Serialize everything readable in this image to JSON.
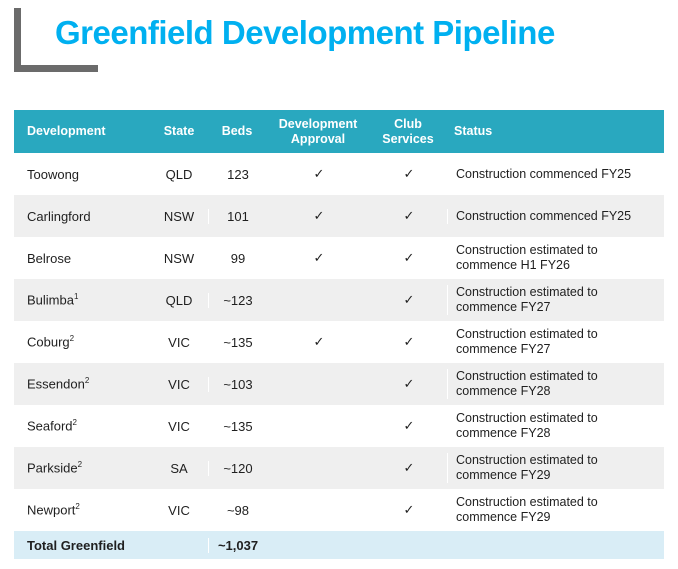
{
  "title": "Greenfield Development Pipeline",
  "colors": {
    "title_accent": "#00b0f0",
    "header_background": "#29a8bf",
    "header_text": "#ffffff",
    "alt_row_background": "#efefef",
    "total_row_background": "#d9edf6",
    "corner_mark": "#6b6b6b",
    "body_text": "#1f1f1f"
  },
  "icons": {
    "check_glyph": "✓"
  },
  "table": {
    "headers": {
      "development": "Development",
      "state": "State",
      "beds": "Beds",
      "approval": "Development Approval",
      "club": "Club Services",
      "status": "Status"
    },
    "rows": [
      {
        "development": "Toowong",
        "sup": "",
        "state": "QLD",
        "beds": "123",
        "dev_approval": true,
        "club_services": true,
        "status": "Construction commenced FY25"
      },
      {
        "development": "Carlingford",
        "sup": "",
        "state": "NSW",
        "beds": "101",
        "dev_approval": true,
        "club_services": true,
        "status": "Construction commenced FY25"
      },
      {
        "development": "Belrose",
        "sup": "",
        "state": "NSW",
        "beds": "99",
        "dev_approval": true,
        "club_services": true,
        "status": "Construction estimated to commence H1 FY26"
      },
      {
        "development": "Bulimba",
        "sup": "1",
        "state": "QLD",
        "beds": "~123",
        "dev_approval": false,
        "club_services": true,
        "status": "Construction estimated to commence FY27"
      },
      {
        "development": "Coburg",
        "sup": "2",
        "state": "VIC",
        "beds": "~135",
        "dev_approval": true,
        "club_services": true,
        "status": "Construction estimated to commence FY27"
      },
      {
        "development": "Essendon",
        "sup": "2",
        "state": "VIC",
        "beds": "~103",
        "dev_approval": false,
        "club_services": true,
        "status": "Construction estimated to commence FY28"
      },
      {
        "development": "Seaford",
        "sup": "2",
        "state": "VIC",
        "beds": "~135",
        "dev_approval": false,
        "club_services": true,
        "status": "Construction estimated to commence FY28"
      },
      {
        "development": "Parkside",
        "sup": "2",
        "state": "SA",
        "beds": "~120",
        "dev_approval": false,
        "club_services": true,
        "status": "Construction estimated to commence FY29"
      },
      {
        "development": "Newport",
        "sup": "2",
        "state": "VIC",
        "beds": "~98",
        "dev_approval": false,
        "club_services": true,
        "status": "Construction estimated to commence FY29"
      }
    ],
    "total": {
      "label": "Total Greenfield",
      "beds": "~1,037"
    }
  }
}
